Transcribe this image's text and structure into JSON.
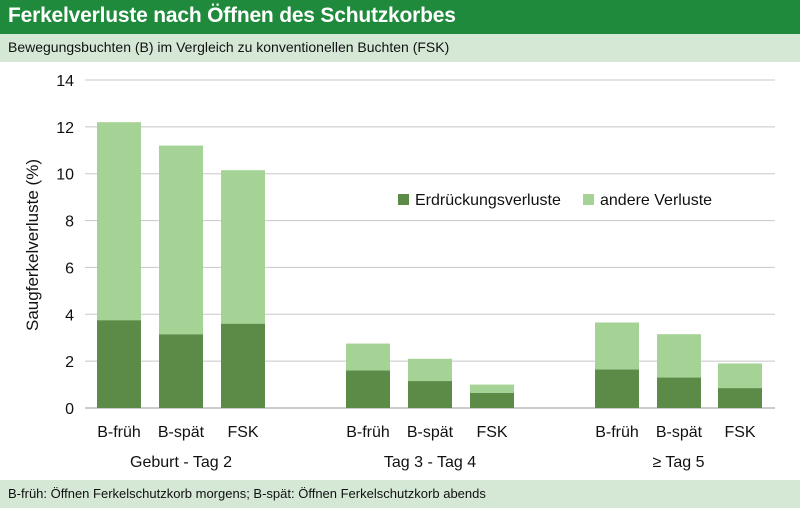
{
  "header": {
    "title": "Ferkelverluste nach Öffnen des Schutzkorbes",
    "subtitle": "Bewegungsbuchten (B) im Vergleich zu konventionellen Buchten (FSK)"
  },
  "footer": {
    "note": "B-früh: Öffnen Ferkelschutzkorb morgens; B-spät: Öffnen Ferkelschutzkorb abends"
  },
  "chart_data": {
    "type": "bar",
    "stacked": true,
    "title": "",
    "ylabel": "Saugferkelverluste (%)",
    "xlabel": "",
    "ylim": [
      0,
      14
    ],
    "yticks": [
      0,
      2,
      4,
      6,
      8,
      10,
      12,
      14
    ],
    "grid": true,
    "legend_position": "top-right",
    "groups": [
      "Geburt - Tag 2",
      "Tag 3 - Tag 4",
      "≥ Tag 5"
    ],
    "categories": [
      {
        "label": "B-früh",
        "group": 0
      },
      {
        "label": "B-spät",
        "group": 0
      },
      {
        "label": "FSK",
        "group": 0
      },
      {
        "label": "B-früh",
        "group": 1
      },
      {
        "label": "B-spät",
        "group": 1
      },
      {
        "label": "FSK",
        "group": 1
      },
      {
        "label": "B-früh",
        "group": 2
      },
      {
        "label": "B-spät",
        "group": 2
      },
      {
        "label": "FSK",
        "group": 2
      }
    ],
    "series": [
      {
        "name": "Erdrückungsverluste",
        "color": "#5b8b46",
        "values": [
          3.75,
          3.15,
          3.6,
          1.6,
          1.15,
          0.65,
          1.65,
          1.3,
          0.85
        ]
      },
      {
        "name": "andere Verluste",
        "color": "#a5d396",
        "values": [
          8.45,
          8.05,
          6.55,
          1.15,
          0.95,
          0.35,
          2.0,
          1.85,
          1.05
        ]
      }
    ]
  }
}
